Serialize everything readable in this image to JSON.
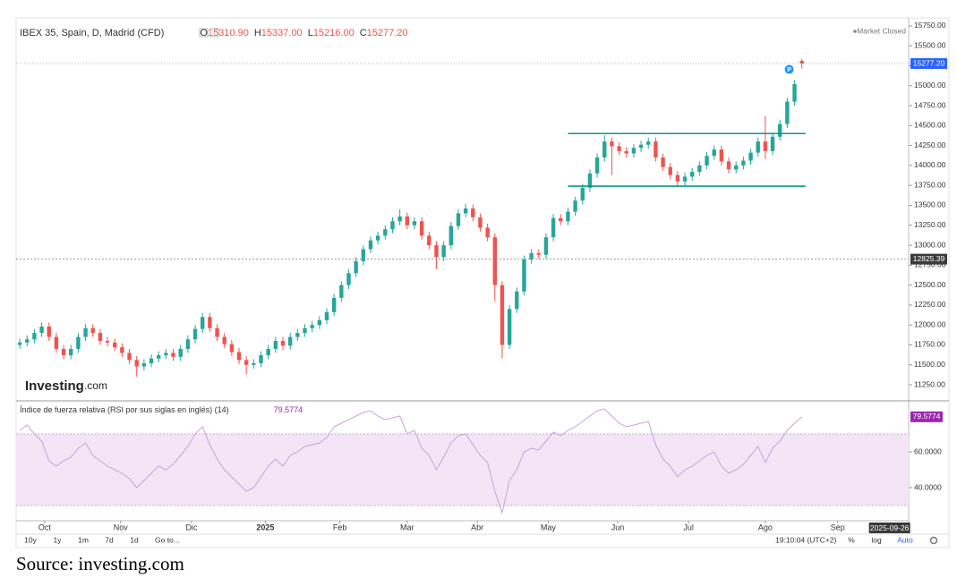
{
  "header": {
    "title": "IBEX 35, Spain, D, Madrid (CFD)",
    "ohlc_prefixes": [
      "O",
      "H",
      "L",
      "C"
    ],
    "ohlc_labels": [
      "15310.90",
      "15337.00",
      "15216.00",
      "15277.20"
    ],
    "status": "Market Closed"
  },
  "logo": {
    "brand": "Investing",
    "suffix": ".com"
  },
  "pin": "P",
  "toolbar": {
    "ranges": [
      "10y",
      "1y",
      "1m",
      "7d",
      "1d"
    ],
    "goto": "Go to...",
    "clock": "19:10:04 (UTC+2)",
    "scale_buttons": [
      "%",
      "log",
      "Auto"
    ]
  },
  "source": "Source: investing.com",
  "chart_data": [
    {
      "type": "candlestick",
      "up_color": "#26a69a",
      "down_color": "#ef5350",
      "xlim": [
        -0.5,
        121
      ],
      "xticks": [
        {
          "value": 3.4,
          "label": "Oct"
        },
        {
          "value": 13.8,
          "label": "Nov"
        },
        {
          "value": 23.5,
          "label": "Dic"
        },
        {
          "value": 33.6,
          "label": "2025"
        },
        {
          "value": 43.8,
          "label": "Feb"
        },
        {
          "value": 53,
          "label": "Mar"
        },
        {
          "value": 62.6,
          "label": "Abr"
        },
        {
          "value": 72.3,
          "label": "May"
        },
        {
          "value": 81.8,
          "label": "Jun"
        },
        {
          "value": 91.5,
          "label": "Jul"
        },
        {
          "value": 102,
          "label": "Ago"
        },
        {
          "value": 111.9,
          "label": "Sep"
        }
      ],
      "ylim": [
        11060,
        15850
      ],
      "yticks": [
        {
          "value": 11250,
          "label": "11250.00"
        },
        {
          "value": 11500,
          "label": "11500.00"
        },
        {
          "value": 11750,
          "label": "11750.00"
        },
        {
          "value": 12000,
          "label": "12000.00"
        },
        {
          "value": 12250,
          "label": "12250.00"
        },
        {
          "value": 12500,
          "label": "12500.00"
        },
        {
          "value": 12750,
          "label": "12750.00"
        },
        {
          "value": 13000,
          "label": "13000.00"
        },
        {
          "value": 13250,
          "label": "13250.00"
        },
        {
          "value": 13500,
          "label": "13500.00"
        },
        {
          "value": 13750,
          "label": "13750.00"
        },
        {
          "value": 14000,
          "label": "14000.00"
        },
        {
          "value": 14250,
          "label": "14250.00"
        },
        {
          "value": 14500,
          "label": "14500.00"
        },
        {
          "value": 14750,
          "label": "14750.00"
        },
        {
          "value": 15000,
          "label": "15000.00"
        },
        {
          "value": 15250,
          "label": "15250.00"
        },
        {
          "value": 15500,
          "label": "15500.00"
        },
        {
          "value": 15750,
          "label": "15750.00"
        }
      ],
      "open": [
        11750,
        11780,
        11820,
        11900,
        11980,
        11850,
        11700,
        11620,
        11700,
        11850,
        11960,
        11900,
        11800,
        11780,
        11720,
        11650,
        11560,
        11480,
        11520,
        11580,
        11620,
        11650,
        11600,
        11700,
        11820,
        11950,
        12100,
        11960,
        11850,
        11760,
        11660,
        11560,
        11500,
        11520,
        11620,
        11700,
        11800,
        11740,
        11850,
        11900,
        11960,
        12000,
        12060,
        12160,
        12340,
        12500,
        12650,
        12800,
        12950,
        13060,
        13120,
        13200,
        13300,
        13360,
        13250,
        13300,
        13120,
        13000,
        12850,
        13000,
        13240,
        13400,
        13460,
        13350,
        13220,
        13100,
        12500,
        11750,
        12200,
        12420,
        12820,
        12900,
        12880,
        13100,
        13340,
        13300,
        13420,
        13560,
        13720,
        13900,
        14100,
        14300,
        14240,
        14180,
        14150,
        14220,
        14260,
        14300,
        14100,
        13980,
        13880,
        13800,
        13860,
        13920,
        14000,
        14120,
        14200,
        14050,
        13950,
        14000,
        14060,
        14160,
        14300,
        14180,
        14360,
        14520,
        14800,
        15310.9
      ],
      "high": [
        11830,
        11870,
        11950,
        12030,
        12030,
        11900,
        11750,
        11750,
        11900,
        12010,
        12010,
        11950,
        11850,
        11830,
        11770,
        11700,
        11610,
        11570,
        11630,
        11670,
        11700,
        11700,
        11750,
        11870,
        12000,
        12150,
        12150,
        12010,
        11900,
        11810,
        11710,
        11610,
        11570,
        11670,
        11750,
        11850,
        11850,
        11900,
        11950,
        12010,
        12050,
        12110,
        12210,
        12390,
        12550,
        12700,
        12850,
        13000,
        13110,
        13170,
        13250,
        13350,
        13450,
        13410,
        13350,
        13350,
        13170,
        13050,
        13050,
        13290,
        13450,
        13520,
        13510,
        13400,
        13270,
        13150,
        12550,
        12250,
        12470,
        12870,
        12950,
        12950,
        13150,
        13390,
        13390,
        13470,
        13610,
        13770,
        13950,
        14150,
        14380,
        14350,
        14290,
        14230,
        14270,
        14310,
        14350,
        14350,
        14150,
        14030,
        13930,
        13910,
        13970,
        14050,
        14170,
        14250,
        14250,
        14100,
        14050,
        14110,
        14210,
        14350,
        14620,
        14410,
        14570,
        14850,
        15070,
        15337
      ],
      "low": [
        11700,
        11730,
        11770,
        11850,
        11800,
        11650,
        11570,
        11570,
        11650,
        11800,
        11850,
        11750,
        11730,
        11670,
        11600,
        11510,
        11350,
        11430,
        11470,
        11530,
        11570,
        11550,
        11550,
        11650,
        11770,
        11900,
        11910,
        11800,
        11710,
        11610,
        11510,
        11380,
        11450,
        11470,
        11570,
        11650,
        11690,
        11690,
        11800,
        11850,
        11910,
        11950,
        12010,
        12110,
        12290,
        12450,
        12600,
        12750,
        12900,
        13010,
        13070,
        13150,
        13250,
        13200,
        13200,
        13070,
        12950,
        12700,
        12800,
        12950,
        13190,
        13350,
        13300,
        13170,
        13050,
        12300,
        11580,
        11700,
        12150,
        12370,
        12770,
        12830,
        12830,
        13050,
        13250,
        13250,
        13370,
        13510,
        13670,
        13850,
        14050,
        13880,
        14130,
        14100,
        14100,
        14170,
        14210,
        14050,
        13930,
        13830,
        13740,
        13750,
        13810,
        13870,
        13950,
        14070,
        14000,
        13900,
        13900,
        13950,
        14010,
        14110,
        14080,
        14130,
        14310,
        14470,
        14750,
        15216
      ],
      "close": [
        11780,
        11820,
        11900,
        11980,
        11850,
        11700,
        11620,
        11700,
        11850,
        11960,
        11900,
        11800,
        11780,
        11720,
        11650,
        11560,
        11480,
        11520,
        11580,
        11620,
        11650,
        11600,
        11700,
        11820,
        11950,
        12100,
        11960,
        11850,
        11760,
        11660,
        11560,
        11500,
        11520,
        11620,
        11700,
        11800,
        11740,
        11850,
        11900,
        11960,
        12000,
        12060,
        12160,
        12340,
        12500,
        12650,
        12800,
        12950,
        13060,
        13120,
        13200,
        13300,
        13360,
        13250,
        13300,
        13120,
        13000,
        12850,
        13000,
        13240,
        13400,
        13460,
        13350,
        13220,
        13100,
        12500,
        11750,
        12200,
        12420,
        12820,
        12900,
        12880,
        13100,
        13340,
        13300,
        13420,
        13560,
        13720,
        13900,
        14100,
        14300,
        14240,
        14180,
        14150,
        14220,
        14260,
        14300,
        14100,
        13980,
        13880,
        13800,
        13860,
        13920,
        14000,
        14120,
        14200,
        14050,
        13950,
        14000,
        14060,
        14160,
        14300,
        14180,
        14360,
        14520,
        14800,
        15020,
        15277.2
      ],
      "line_color": "#089981",
      "lines": [
        {
          "value": 14400,
          "from": 75,
          "to": 107.5
        },
        {
          "value": 13740,
          "from": 75,
          "to": 107.5
        }
      ],
      "crosshair": {
        "x": {
          "value": 119,
          "label": "2025-09-26"
        },
        "y": {
          "value": 12825.39,
          "label": "12825.39"
        }
      }
    },
    {
      "type": "line",
      "title": "Índice de fuerza relativa (RSI por sus siglas en inglés) (14)",
      "color": "#c9a3d9",
      "ylim": [
        21.5,
        88
      ],
      "yticks": [
        {
          "value": 40,
          "label": "40.0000"
        },
        {
          "value": 60,
          "label": "60.0000"
        }
      ],
      "band": [
        30,
        70
      ],
      "band_color": "#f3e5f5",
      "values": [
        72,
        75,
        70,
        66,
        55,
        52,
        55,
        57,
        62,
        65,
        58,
        55,
        52,
        50,
        48,
        45,
        40,
        44,
        48,
        52,
        50,
        53,
        58,
        63,
        70,
        74,
        64,
        56,
        50,
        46,
        42,
        38,
        40,
        46,
        52,
        56,
        52,
        58,
        60,
        63,
        64,
        65,
        68,
        74,
        76,
        78,
        80,
        82,
        83,
        80,
        78,
        79,
        80,
        70,
        72,
        62,
        58,
        50,
        57,
        65,
        69,
        70,
        64,
        58,
        54,
        38,
        26,
        44,
        50,
        60,
        62,
        61,
        66,
        71,
        69,
        72,
        74,
        77,
        80,
        83,
        84,
        80,
        76,
        74,
        75,
        76,
        77,
        64,
        56,
        52,
        46,
        50,
        52,
        55,
        58,
        60,
        52,
        48,
        50,
        53,
        58,
        63,
        54,
        62,
        66,
        72,
        76,
        79.5774
      ]
    }
  ]
}
